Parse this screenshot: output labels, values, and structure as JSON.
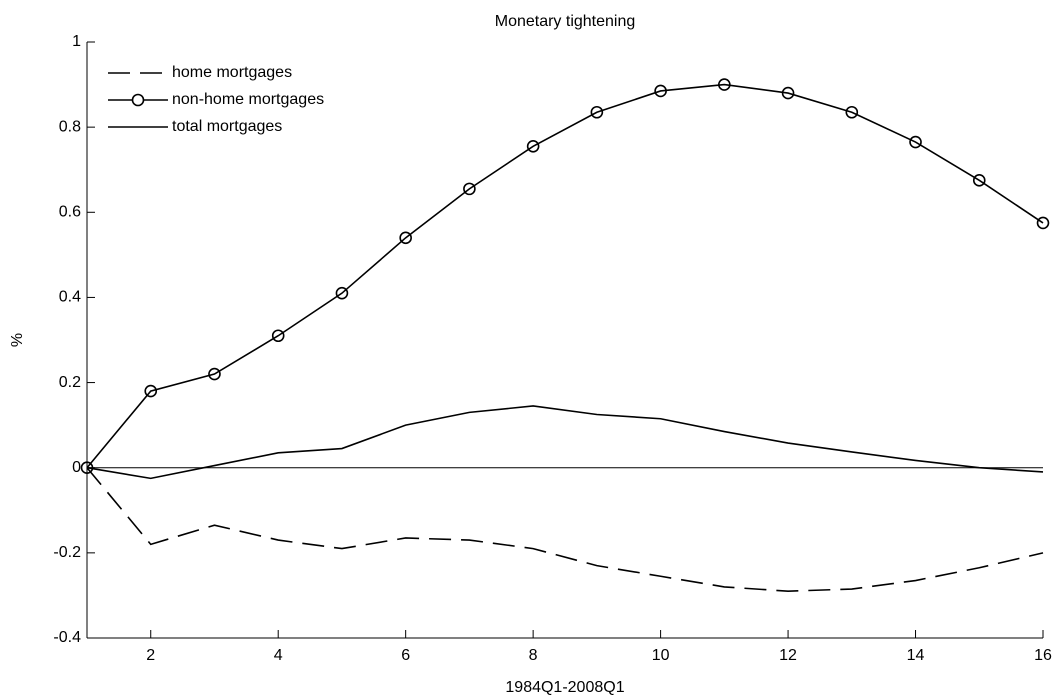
{
  "chart_data": {
    "type": "line",
    "title": "Monetary tightening",
    "x_label": "1984Q1-2008Q1",
    "y_label": "%",
    "x": [
      1,
      2,
      3,
      4,
      5,
      6,
      7,
      8,
      9,
      10,
      11,
      12,
      13,
      14,
      15,
      16
    ],
    "xlim": [
      1,
      16
    ],
    "xticks": [
      2,
      4,
      6,
      8,
      10,
      12,
      14,
      16
    ],
    "ylim": [
      -0.4,
      1
    ],
    "yticks": [
      -0.4,
      -0.2,
      0,
      0.2,
      0.4,
      0.6,
      0.8,
      1
    ],
    "legend": "upper left",
    "series": [
      {
        "name": "home mortgages",
        "color": "#000000",
        "style": "dashed",
        "values": [
          0,
          -0.18,
          -0.135,
          -0.17,
          -0.19,
          -0.165,
          -0.17,
          -0.19,
          -0.23,
          -0.255,
          -0.28,
          -0.29,
          -0.285,
          -0.265,
          -0.235,
          -0.2
        ]
      },
      {
        "name": "non-home mortgages",
        "color": "#000000",
        "style": "circles",
        "values": [
          0,
          0.18,
          0.22,
          0.31,
          0.41,
          0.54,
          0.655,
          0.755,
          0.835,
          0.885,
          0.9,
          0.88,
          0.835,
          0.765,
          0.675,
          0.575
        ]
      },
      {
        "name": "total mortgages",
        "color": "#000000",
        "style": "solid",
        "values": [
          0,
          -0.025,
          0.005,
          0.035,
          0.045,
          0.1,
          0.13,
          0.145,
          0.125,
          0.115,
          0.085,
          0.058,
          0.037,
          0.017,
          0,
          -0.01
        ]
      }
    ]
  }
}
